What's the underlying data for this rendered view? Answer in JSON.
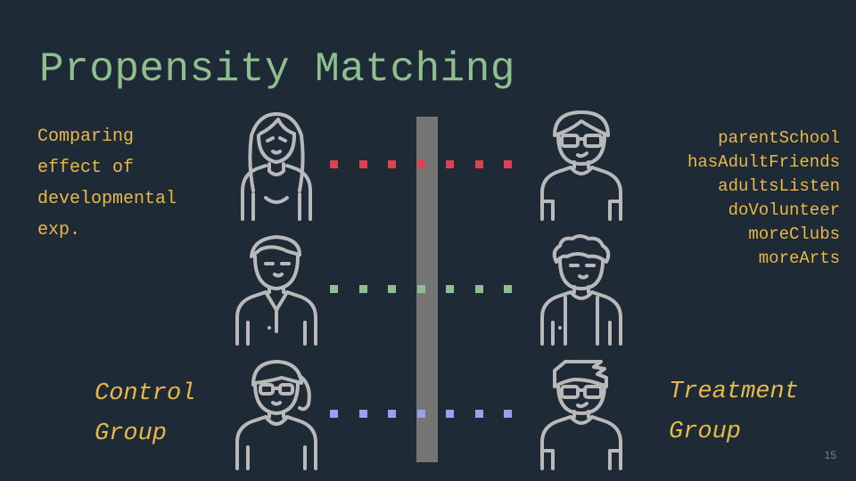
{
  "slide": {
    "title": "Propensity Matching",
    "description_lines": [
      "Comparing",
      "effect of",
      "developmental",
      "exp."
    ],
    "covariates": [
      "parentSchool",
      "hasAdultFriends",
      "adultsListen",
      "doVolunteer",
      "moreClubs",
      "moreArts"
    ],
    "control_label_lines": [
      "Control",
      "Group"
    ],
    "treatment_label_lines": [
      "Treatment",
      "Group"
    ],
    "page_number": "15"
  },
  "pairs": [
    {
      "control_icon": "woman-long-hair-icon",
      "treatment_icon": "man-glasses-icon",
      "link_color": "#e0404f"
    },
    {
      "control_icon": "man-polo-shirt-icon",
      "treatment_icon": "man-curly-hair-icon",
      "link_color": "#8fbf8f"
    },
    {
      "control_icon": "woman-ponytail-glasses-icon",
      "treatment_icon": "man-quiff-glasses-icon",
      "link_color": "#9aa0f0"
    }
  ],
  "colors": {
    "background": "#1e2a35",
    "title": "#8fbf8f",
    "text_accent": "#e8b84a",
    "divider": "#757575",
    "icon_stroke": "#b9b9b9"
  }
}
